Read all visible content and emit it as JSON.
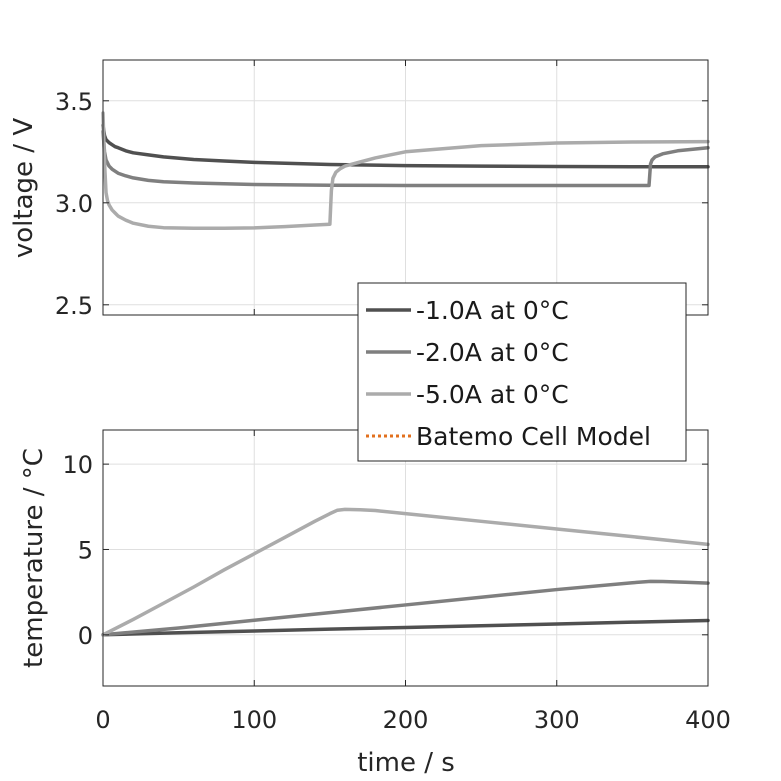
{
  "chart_data": [
    {
      "type": "line",
      "title": "",
      "xlabel": "",
      "ylabel": "voltage / V",
      "xlim": [
        0,
        400
      ],
      "ylim": [
        2.45,
        3.7
      ],
      "xticks": [
        0,
        100,
        200,
        300,
        400
      ],
      "yticks": [
        2.5,
        3.0,
        3.5
      ],
      "ytick_labels": [
        "2.5",
        "3.0",
        "3.5"
      ],
      "grid": true,
      "series": [
        {
          "name": "-1.0A at 0°C",
          "color": "#505050",
          "x": [
            0,
            1,
            2,
            4,
            6,
            8,
            10,
            15,
            20,
            30,
            40,
            60,
            80,
            100,
            150,
            200,
            250,
            300,
            350,
            400
          ],
          "y": [
            3.38,
            3.33,
            3.31,
            3.295,
            3.285,
            3.275,
            3.27,
            3.255,
            3.245,
            3.235,
            3.225,
            3.212,
            3.205,
            3.198,
            3.188,
            3.182,
            3.18,
            3.178,
            3.177,
            3.177
          ]
        },
        {
          "name": "-2.0A at 0°C",
          "color": "#7f7f7f",
          "x": [
            0,
            1,
            2,
            4,
            6,
            8,
            10,
            15,
            20,
            30,
            40,
            60,
            100,
            150,
            200,
            250,
            300,
            350,
            361,
            362,
            363,
            365,
            370,
            380,
            400
          ],
          "y": [
            3.35,
            3.25,
            3.21,
            3.18,
            3.165,
            3.155,
            3.145,
            3.132,
            3.122,
            3.11,
            3.103,
            3.097,
            3.09,
            3.086,
            3.085,
            3.085,
            3.085,
            3.085,
            3.085,
            3.19,
            3.21,
            3.225,
            3.24,
            3.255,
            3.27
          ]
        },
        {
          "name": "-5.0A at 0°C",
          "color": "#ababab",
          "x": [
            0,
            1,
            2,
            3,
            4,
            6,
            8,
            10,
            15,
            20,
            30,
            40,
            60,
            80,
            100,
            120,
            140,
            150,
            151,
            152,
            154,
            157,
            160,
            170,
            180,
            200,
            250,
            300,
            350,
            400
          ],
          "y": [
            3.44,
            3.2,
            3.05,
            3.01,
            2.99,
            2.965,
            2.95,
            2.935,
            2.915,
            2.9,
            2.885,
            2.878,
            2.875,
            2.875,
            2.877,
            2.883,
            2.891,
            2.895,
            3.06,
            3.12,
            3.15,
            3.168,
            3.18,
            3.2,
            3.22,
            3.25,
            3.28,
            3.293,
            3.298,
            3.3
          ]
        }
      ]
    },
    {
      "type": "line",
      "title": "",
      "xlabel": "time / s",
      "ylabel": "temperature / °C",
      "xlim": [
        0,
        400
      ],
      "ylim": [
        -3,
        12
      ],
      "xticks": [
        0,
        100,
        200,
        300,
        400
      ],
      "yticks": [
        0,
        5,
        10
      ],
      "grid": true,
      "series": [
        {
          "name": "-1.0A at 0°C",
          "color": "#505050",
          "x": [
            0,
            50,
            100,
            150,
            200,
            250,
            300,
            350,
            400
          ],
          "y": [
            0,
            0.12,
            0.22,
            0.33,
            0.43,
            0.53,
            0.63,
            0.74,
            0.84
          ]
        },
        {
          "name": "-2.0A at 0°C",
          "color": "#7f7f7f",
          "x": [
            0,
            50,
            100,
            150,
            200,
            250,
            300,
            350,
            362,
            370,
            385,
            400
          ],
          "y": [
            0,
            0.4,
            0.85,
            1.3,
            1.75,
            2.2,
            2.65,
            3.05,
            3.13,
            3.12,
            3.08,
            3.03
          ]
        },
        {
          "name": "-5.0A at 0°C",
          "color": "#ababab",
          "x": [
            0,
            20,
            40,
            60,
            80,
            100,
            120,
            140,
            150,
            155,
            160,
            170,
            180,
            200,
            250,
            300,
            350,
            400
          ],
          "y": [
            0,
            0.9,
            1.85,
            2.8,
            3.8,
            4.75,
            5.7,
            6.65,
            7.1,
            7.3,
            7.35,
            7.33,
            7.28,
            7.1,
            6.65,
            6.2,
            5.75,
            5.3
          ]
        }
      ]
    }
  ],
  "legend": {
    "placement": "right, between the two plots",
    "entries": [
      {
        "label": "-1.0A at 0°C",
        "color": "#505050",
        "style": "solid"
      },
      {
        "label": "-2.0A at 0°C",
        "color": "#7f7f7f",
        "style": "solid"
      },
      {
        "label": "-5.0A at 0°C",
        "color": "#ababab",
        "style": "solid"
      },
      {
        "label": "Batemo Cell Model",
        "color": "#e2701e",
        "style": "dotted"
      }
    ]
  }
}
